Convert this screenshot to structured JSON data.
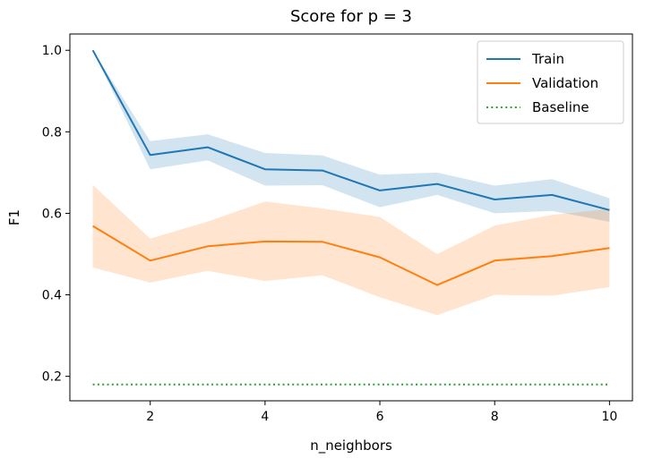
{
  "chart_data": {
    "type": "line",
    "title": "Score for p = 3",
    "xlabel": "n_neighbors",
    "ylabel": "F1",
    "xlim": [
      0.6,
      10.4
    ],
    "ylim": [
      0.14,
      1.04
    ],
    "xticks": [
      2,
      4,
      6,
      8,
      10
    ],
    "yticks": [
      0.2,
      0.4,
      0.6,
      0.8,
      1.0
    ],
    "xtick_labels": [
      "2",
      "4",
      "6",
      "8",
      "10"
    ],
    "ytick_labels": [
      "0.2",
      "0.4",
      "0.6",
      "0.8",
      "1.0"
    ],
    "grid": false,
    "legend_position": "top-right",
    "x": [
      1,
      2,
      3,
      4,
      5,
      6,
      7,
      8,
      9,
      10
    ],
    "series": [
      {
        "name": "Train",
        "color": "#1f77b4",
        "style": "solid",
        "values": [
          1.0,
          0.743,
          0.762,
          0.708,
          0.705,
          0.656,
          0.672,
          0.634,
          0.645,
          0.608
        ],
        "band_upper": [
          1.0,
          0.777,
          0.794,
          0.748,
          0.742,
          0.695,
          0.7,
          0.668,
          0.684,
          0.637
        ],
        "band_lower": [
          1.0,
          0.708,
          0.73,
          0.668,
          0.669,
          0.615,
          0.645,
          0.6,
          0.606,
          0.579
        ]
      },
      {
        "name": "Validation",
        "color": "#ff7f0e",
        "style": "solid",
        "values": [
          0.569,
          0.484,
          0.519,
          0.531,
          0.53,
          0.492,
          0.424,
          0.484,
          0.495,
          0.515
        ],
        "band_upper": [
          0.67,
          0.538,
          0.58,
          0.629,
          0.612,
          0.591,
          0.5,
          0.57,
          0.596,
          0.611
        ],
        "band_lower": [
          0.467,
          0.43,
          0.459,
          0.434,
          0.448,
          0.394,
          0.35,
          0.4,
          0.398,
          0.419
        ]
      },
      {
        "name": "Baseline",
        "color": "#2ca02c",
        "style": "dotted",
        "values": [
          0.18,
          0.18,
          0.18,
          0.18,
          0.18,
          0.18,
          0.18,
          0.18,
          0.18,
          0.18
        ]
      }
    ]
  }
}
